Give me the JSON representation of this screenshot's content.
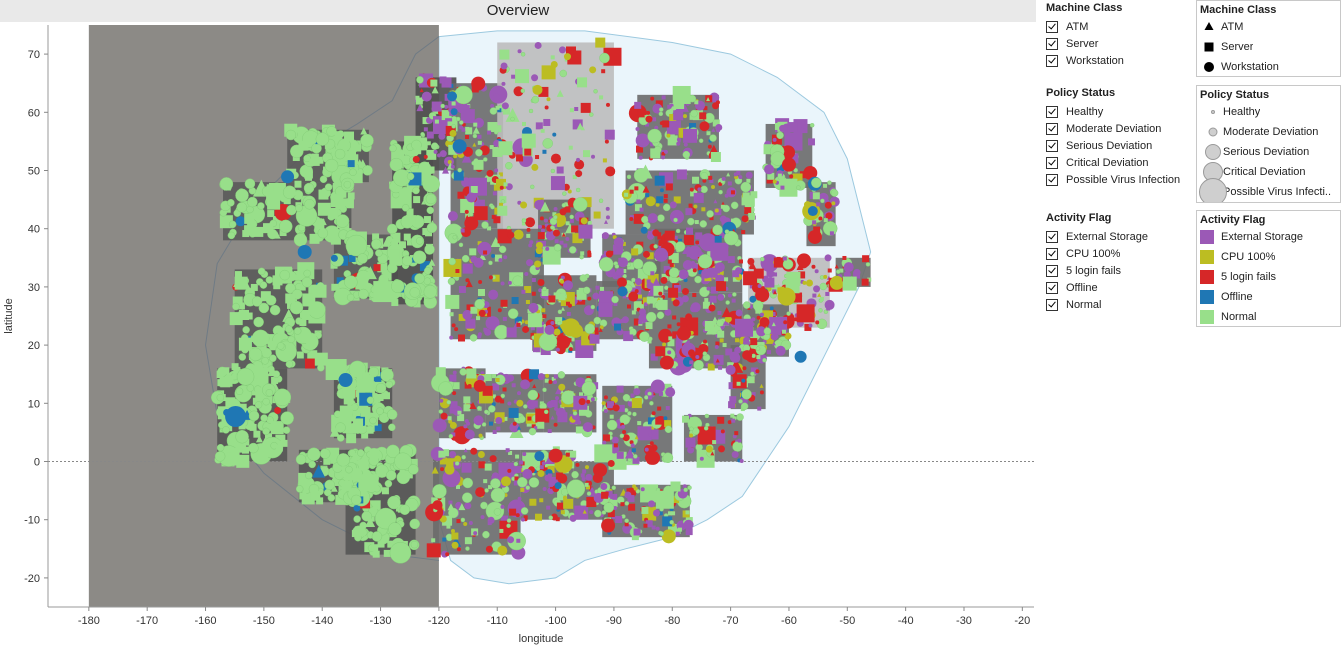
{
  "title": "Overview",
  "chart_data": {
    "type": "scatter",
    "xlabel": "longitude",
    "ylabel": "latitude",
    "xlim": [
      -187,
      -18
    ],
    "ylim": [
      -25,
      75
    ],
    "x_ticks": [
      -180,
      -170,
      -160,
      -150,
      -140,
      -130,
      -120,
      -110,
      -100,
      -90,
      -80,
      -70,
      -60,
      -50,
      -40,
      -30,
      -20
    ],
    "y_ticks": [
      -20,
      -10,
      0,
      10,
      20,
      30,
      40,
      50,
      60,
      70
    ],
    "shaded_region_x": [
      -180,
      -120
    ],
    "zero_line_y": 0,
    "colors": {
      "external_storage": "#9b59b6",
      "cpu_100": "#bcbd22",
      "login_fails": "#d62728",
      "offline": "#1f77b4",
      "normal": "#98df8a",
      "shaded_region": "#8c8a86",
      "map_land": "#eaf5fb"
    },
    "block_groups": [
      {
        "x": [
          -146,
          -132
        ],
        "y": [
          48,
          57
        ],
        "fill": "#5a5a5a"
      },
      {
        "x": [
          -157,
          -135
        ],
        "y": [
          38,
          48
        ],
        "fill": "#5a5a5a"
      },
      {
        "x": [
          -138,
          -127
        ],
        "y": [
          28,
          39
        ],
        "fill": "#5a5a5a"
      },
      {
        "x": [
          -155,
          -140
        ],
        "y": [
          16,
          33
        ],
        "fill": "#5a5a5a"
      },
      {
        "x": [
          -128,
          -121
        ],
        "y": [
          27,
          55
        ],
        "fill": "#4e4e4e"
      },
      {
        "x": [
          -124,
          -117
        ],
        "y": [
          50,
          66
        ],
        "fill": "#4e4e4e"
      },
      {
        "x": [
          -118,
          -109
        ],
        "y": [
          40,
          65
        ],
        "fill": "#6a6a6a"
      },
      {
        "x": [
          -110,
          -90
        ],
        "y": [
          40,
          72
        ],
        "fill": "#bdbdbd"
      },
      {
        "x": [
          -86,
          -72
        ],
        "y": [
          52,
          63
        ],
        "fill": "#6a6a6a"
      },
      {
        "x": [
          -88,
          -66
        ],
        "y": [
          39,
          50
        ],
        "fill": "#6a6a6a"
      },
      {
        "x": [
          -64,
          -56
        ],
        "y": [
          47,
          58
        ],
        "fill": "#6a6a6a"
      },
      {
        "x": [
          -57,
          -52
        ],
        "y": [
          37,
          48
        ],
        "fill": "#6a6a6a"
      },
      {
        "x": [
          -118,
          -102
        ],
        "y": [
          21,
          40
        ],
        "fill": "#6a6a6a"
      },
      {
        "x": [
          -103,
          -94
        ],
        "y": [
          35,
          45
        ],
        "fill": "#6a6a6a"
      },
      {
        "x": [
          -92,
          -82
        ],
        "y": [
          30,
          39
        ],
        "fill": "#6a6a6a"
      },
      {
        "x": [
          -83,
          -68
        ],
        "y": [
          29,
          40
        ],
        "fill": "#6a6a6a"
      },
      {
        "x": [
          -67,
          -53
        ],
        "y": [
          23,
          35
        ],
        "fill": "#bdbdbd"
      },
      {
        "x": [
          -52,
          -46
        ],
        "y": [
          30,
          35
        ],
        "fill": "#6a6a6a"
      },
      {
        "x": [
          -104,
          -93
        ],
        "y": [
          19,
          32
        ],
        "fill": "#6a6a6a"
      },
      {
        "x": [
          -93,
          -84
        ],
        "y": [
          21,
          31
        ],
        "fill": "#6a6a6a"
      },
      {
        "x": [
          -84,
          -68
        ],
        "y": [
          16,
          29
        ],
        "fill": "#6a6a6a"
      },
      {
        "x": [
          -68,
          -60
        ],
        "y": [
          18,
          27
        ],
        "fill": "#6a6a6a"
      },
      {
        "x": [
          -70,
          -64
        ],
        "y": [
          9,
          20
        ],
        "fill": "#6a6a6a"
      },
      {
        "x": [
          -120,
          -112
        ],
        "y": [
          4,
          16
        ],
        "fill": "#6a6a6a"
      },
      {
        "x": [
          -112,
          -102
        ],
        "y": [
          5,
          15
        ],
        "fill": "#6a6a6a"
      },
      {
        "x": [
          -102,
          -93
        ],
        "y": [
          5,
          15
        ],
        "fill": "#6a6a6a"
      },
      {
        "x": [
          -92,
          -80
        ],
        "y": [
          0,
          13
        ],
        "fill": "#6a6a6a"
      },
      {
        "x": [
          -78,
          -68
        ],
        "y": [
          0,
          8
        ],
        "fill": "#6a6a6a"
      },
      {
        "x": [
          -121,
          -106
        ],
        "y": [
          -16,
          2
        ],
        "fill": "#6a6a6a"
      },
      {
        "x": [
          -106,
          -97
        ],
        "y": [
          -10,
          2
        ],
        "fill": "#6a6a6a"
      },
      {
        "x": [
          -97,
          -90
        ],
        "y": [
          -10,
          0
        ],
        "fill": "#6a6a6a"
      },
      {
        "x": [
          -92,
          -77
        ],
        "y": [
          -13,
          -4
        ],
        "fill": "#6a6a6a"
      },
      {
        "x": [
          -136,
          -124
        ],
        "y": [
          -16,
          2
        ],
        "fill": "#555555"
      },
      {
        "x": [
          -144,
          -131
        ],
        "y": [
          -7,
          2
        ],
        "fill": "#555555"
      },
      {
        "x": [
          -158,
          -146
        ],
        "y": [
          0,
          16
        ],
        "fill": "#555555"
      },
      {
        "x": [
          -138,
          -128
        ],
        "y": [
          4,
          16
        ],
        "fill": "#555555"
      }
    ]
  },
  "filters": {
    "machine_class": {
      "title": "Machine Class",
      "items": [
        "ATM",
        "Server",
        "Workstation"
      ]
    },
    "policy_status": {
      "title": "Policy Status",
      "items": [
        "Healthy",
        "Moderate Deviation",
        "Serious Deviation",
        "Critical Deviation",
        "Possible Virus Infection"
      ]
    },
    "activity_flag": {
      "title": "Activity Flag",
      "items": [
        "External Storage",
        "CPU 100%",
        "5 login fails",
        "Offline",
        "Normal"
      ]
    }
  },
  "legends": {
    "machine_class": {
      "title": "Machine Class",
      "items": [
        {
          "label": "ATM",
          "shape": "triangle"
        },
        {
          "label": "Server",
          "shape": "square"
        },
        {
          "label": "Workstation",
          "shape": "circle"
        }
      ]
    },
    "policy_status": {
      "title": "Policy Status",
      "items": [
        {
          "label": "Healthy",
          "size": 3
        },
        {
          "label": "Moderate Deviation",
          "size": 8
        },
        {
          "label": "Serious Deviation",
          "size": 15
        },
        {
          "label": "Critical Deviation",
          "size": 19
        },
        {
          "label": "Possible Virus Infecti..",
          "size": 27
        }
      ]
    },
    "activity_flag": {
      "title": "Activity Flag",
      "items": [
        {
          "label": "External Storage",
          "color": "#9b59b6"
        },
        {
          "label": "CPU 100%",
          "color": "#bcbd22"
        },
        {
          "label": "5 login fails",
          "color": "#d62728"
        },
        {
          "label": "Offline",
          "color": "#1f77b4"
        },
        {
          "label": "Normal",
          "color": "#98df8a"
        }
      ]
    }
  }
}
